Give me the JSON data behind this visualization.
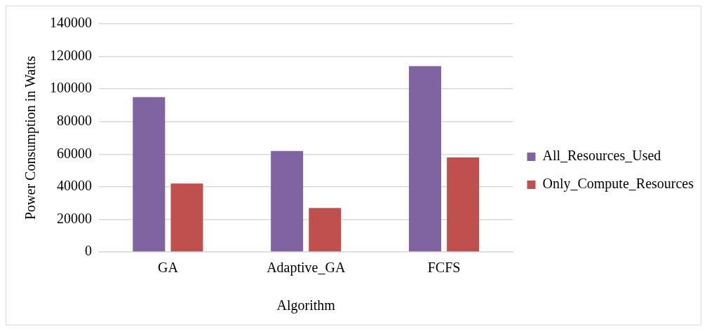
{
  "chart_data": {
    "type": "bar",
    "xlabel": "Algorithm",
    "ylabel": "Power Consumption in Watts",
    "categories": [
      "GA",
      "Adaptive_GA",
      "FCFS"
    ],
    "series": [
      {
        "name": "All_Resources_Used",
        "color": "#8064a2",
        "values": [
          95000,
          62000,
          114000
        ]
      },
      {
        "name": "Only_Compute_Resources",
        "color": "#c0504d",
        "values": [
          42000,
          27000,
          58000
        ]
      }
    ],
    "ylim": [
      0,
      140000
    ],
    "yticks": [
      0,
      20000,
      40000,
      60000,
      80000,
      100000,
      120000,
      140000
    ],
    "grid": "y",
    "legend": "right"
  }
}
